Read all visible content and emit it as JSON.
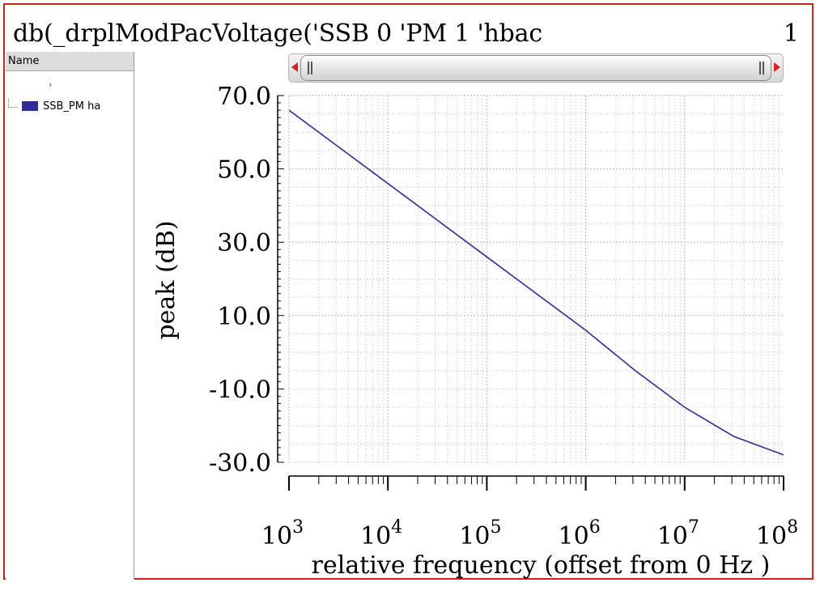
{
  "window": {
    "title": "db(_drplModPacVoltage('SSB 0 'PM 1 'hbac",
    "page_number": "1"
  },
  "legend": {
    "header": "Name",
    "header_mark": "›",
    "items": [
      {
        "label": "SSB_PM ha",
        "color": "#2d2d96"
      }
    ]
  },
  "scrollbar": {
    "left_arrow_icon": "arrow-left-icon",
    "right_arrow_icon": "arrow-right-icon"
  },
  "chart_data": {
    "type": "line",
    "xlabel": "relative frequency (offset from 0 Hz )",
    "ylabel": "peak (dB)",
    "x_scale": "log",
    "xlim": [
      1000,
      100000000
    ],
    "ylim": [
      -30,
      70
    ],
    "grid": true,
    "x_ticks": [
      {
        "base": "10",
        "exp": "3"
      },
      {
        "base": "10",
        "exp": "4"
      },
      {
        "base": "10",
        "exp": "5"
      },
      {
        "base": "10",
        "exp": "6"
      },
      {
        "base": "10",
        "exp": "7"
      },
      {
        "base": "10",
        "exp": "8"
      }
    ],
    "y_ticks": [
      "70.0",
      "50.0",
      "30.0",
      "10.0",
      "-10.0",
      "-30.0"
    ],
    "y_tick_values": [
      70,
      50,
      30,
      10,
      -10,
      -30
    ],
    "series": [
      {
        "name": "SSB_PM ha",
        "color": "#2d2d96",
        "x": [
          1000,
          3160,
          10000,
          31600,
          100000,
          316000,
          1000000,
          3160000,
          10000000,
          31600000,
          100000000
        ],
        "y": [
          66,
          56,
          46,
          36,
          26,
          16,
          6,
          -5,
          -15,
          -23,
          -28
        ]
      }
    ]
  }
}
